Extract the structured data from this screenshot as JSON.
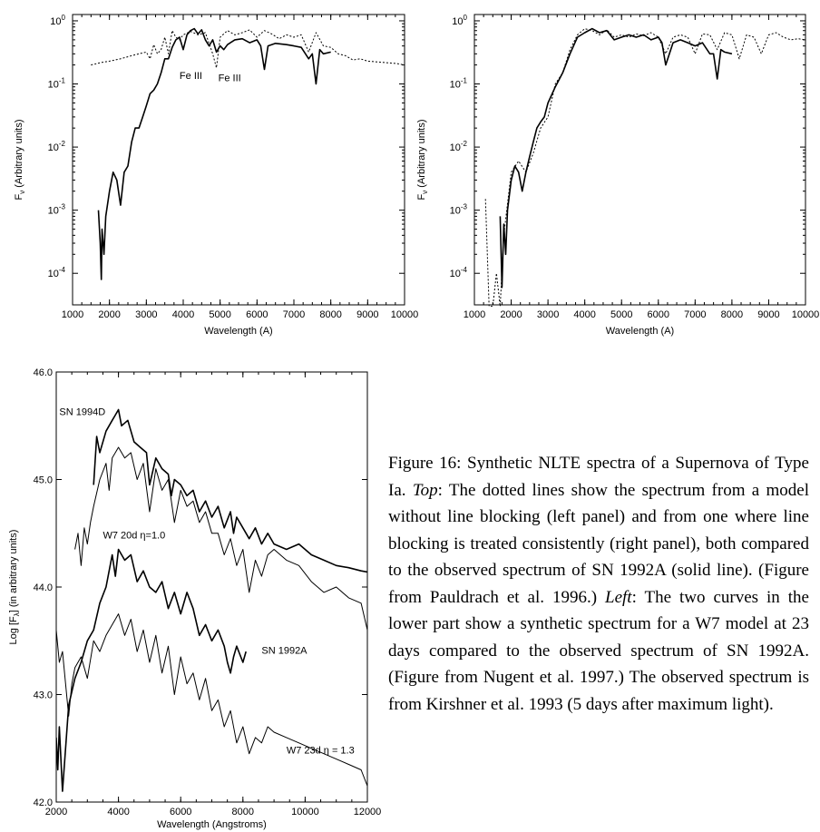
{
  "figure": {
    "caption_label": "Figure 16:",
    "caption_intro": " Synthetic NLTE spectra of a Supernova of Type Ia. ",
    "caption_top_word": "Top",
    "caption_top_text": ": The dotted lines show the spectrum from a model without line blocking (left panel) and from one where line blocking is treated consistently (right panel), both compared to the observed spectrum of SN 1992A (solid line). (Figure from Pauldrach et al. 1996.) ",
    "caption_left_word": "Left",
    "caption_left_text": ": The two curves in the lower part show a synthetic spectrum for a W7 model at 23 days compared to the observed spectrum of SN 1992A. (Figure from Nugent et al. 1997.) The observed spectrum is from Kirshner et al. 1993 (5 days after maximum light)."
  },
  "chart_data": [
    {
      "type": "line",
      "xlabel": "Wavelength (A)",
      "ylabel": "F_ν (Arbitrary units)",
      "xlim": [
        1000,
        10000
      ],
      "ylim_log10": [
        -4.5,
        0.1
      ],
      "yscale": "log",
      "grid": false,
      "xticks": [
        "1000",
        "2000",
        "3000",
        "4000",
        "5000",
        "6000",
        "7000",
        "8000",
        "9000",
        "10000"
      ],
      "yticks": [
        {
          "base": "10",
          "exp": "0",
          "log": 0
        },
        {
          "base": "10",
          "exp": "-1",
          "log": -1
        },
        {
          "base": "10",
          "exp": "-2",
          "log": -2
        },
        {
          "base": "10",
          "exp": "-3",
          "log": -3
        },
        {
          "base": "10",
          "exp": "-4",
          "log": -4
        }
      ],
      "annotations": [
        {
          "text": "Fe III",
          "x": 3900,
          "y": 0.12
        },
        {
          "text": "Fe III",
          "x": 4950,
          "y": 0.11
        }
      ],
      "series": [
        {
          "style": "solid",
          "x": [
            1700,
            1750,
            1780,
            1800,
            1850,
            1900,
            2000,
            2100,
            2200,
            2300,
            2400,
            2500,
            2600,
            2700,
            2800,
            2900,
            3000,
            3100,
            3200,
            3300,
            3400,
            3500,
            3600,
            3700,
            3800,
            3900,
            4000,
            4100,
            4200,
            4300,
            4400,
            4500,
            4600,
            4700,
            4800,
            4900,
            5000,
            5100,
            5200,
            5400,
            5600,
            5800,
            6000,
            6100,
            6200,
            6300,
            6500,
            6800,
            7000,
            7200,
            7400,
            7500,
            7600,
            7700,
            7800,
            8000
          ],
          "y": [
            0.001,
            0.0003,
            8e-05,
            0.0005,
            0.0002,
            0.0008,
            0.002,
            0.004,
            0.003,
            0.0012,
            0.004,
            0.005,
            0.012,
            0.02,
            0.02,
            0.03,
            0.045,
            0.07,
            0.08,
            0.1,
            0.15,
            0.25,
            0.25,
            0.38,
            0.5,
            0.55,
            0.35,
            0.6,
            0.7,
            0.75,
            0.62,
            0.72,
            0.5,
            0.4,
            0.5,
            0.32,
            0.4,
            0.35,
            0.42,
            0.5,
            0.52,
            0.45,
            0.5,
            0.4,
            0.17,
            0.4,
            0.44,
            0.42,
            0.4,
            0.38,
            0.25,
            0.3,
            0.1,
            0.35,
            0.3,
            0.32
          ]
        },
        {
          "style": "dotted",
          "x": [
            1500,
            1800,
            2000,
            2300,
            2600,
            2800,
            3000,
            3100,
            3200,
            3300,
            3400,
            3500,
            3600,
            3700,
            3800,
            3900,
            4000,
            4200,
            4400,
            4600,
            4800,
            4900,
            5000,
            5200,
            5400,
            5600,
            5800,
            6000,
            6200,
            6400,
            6600,
            6800,
            7000,
            7200,
            7400,
            7600,
            7800,
            8000,
            8200,
            8400,
            8600,
            8800,
            9000,
            9400,
            9800,
            10000
          ],
          "y": [
            0.2,
            0.22,
            0.23,
            0.25,
            0.28,
            0.3,
            0.32,
            0.25,
            0.42,
            0.3,
            0.35,
            0.55,
            0.3,
            0.7,
            0.55,
            0.5,
            0.6,
            0.68,
            0.6,
            0.65,
            0.3,
            0.18,
            0.55,
            0.7,
            0.6,
            0.65,
            0.72,
            0.55,
            0.7,
            0.62,
            0.52,
            0.6,
            0.55,
            0.6,
            0.32,
            0.65,
            0.4,
            0.38,
            0.3,
            0.28,
            0.24,
            0.25,
            0.23,
            0.22,
            0.21,
            0.2
          ]
        }
      ]
    },
    {
      "type": "line",
      "xlabel": "Wavelength (A)",
      "ylabel": "F_ν (Arbitrary units)",
      "xlim": [
        1000,
        10000
      ],
      "ylim_log10": [
        -4.5,
        0.1
      ],
      "yscale": "log",
      "grid": false,
      "xticks": [
        "1000",
        "2000",
        "3000",
        "4000",
        "5000",
        "6000",
        "7000",
        "8000",
        "9000",
        "10000"
      ],
      "yticks": [
        {
          "base": "10",
          "exp": "0",
          "log": 0
        },
        {
          "base": "10",
          "exp": "-1",
          "log": -1
        },
        {
          "base": "10",
          "exp": "-2",
          "log": -2
        },
        {
          "base": "10",
          "exp": "-3",
          "log": -3
        },
        {
          "base": "10",
          "exp": "-4",
          "log": -4
        }
      ],
      "series": [
        {
          "style": "solid",
          "x": [
            1700,
            1750,
            1800,
            1850,
            1900,
            2000,
            2100,
            2200,
            2300,
            2400,
            2500,
            2600,
            2700,
            2800,
            2900,
            3000,
            3200,
            3400,
            3600,
            3800,
            4000,
            4200,
            4400,
            4600,
            4800,
            5000,
            5200,
            5400,
            5600,
            5800,
            6000,
            6100,
            6200,
            6400,
            6600,
            6800,
            7000,
            7200,
            7400,
            7500,
            7600,
            7700,
            7800,
            8000
          ],
          "y": [
            0.0008,
            6e-05,
            0.0006,
            0.0002,
            0.001,
            0.003,
            0.005,
            0.004,
            0.002,
            0.004,
            0.007,
            0.012,
            0.02,
            0.025,
            0.03,
            0.05,
            0.09,
            0.15,
            0.3,
            0.55,
            0.65,
            0.75,
            0.65,
            0.7,
            0.5,
            0.55,
            0.6,
            0.55,
            0.6,
            0.5,
            0.55,
            0.45,
            0.2,
            0.45,
            0.5,
            0.45,
            0.4,
            0.45,
            0.3,
            0.3,
            0.12,
            0.35,
            0.32,
            0.3
          ]
        },
        {
          "style": "dotted",
          "x": [
            1300,
            1400,
            1500,
            1600,
            1700,
            1800,
            2000,
            2200,
            2400,
            2600,
            2800,
            3000,
            3200,
            3400,
            3600,
            3800,
            4000,
            4200,
            4400,
            4600,
            4800,
            5000,
            5200,
            5400,
            5600,
            5800,
            6000,
            6200,
            6400,
            6600,
            6800,
            7000,
            7200,
            7400,
            7600,
            7800,
            8000,
            8200,
            8400,
            8600,
            8800,
            9000,
            9200,
            9400,
            9600,
            9800,
            10000
          ],
          "y": [
            0.0015,
            3e-05,
            3e-05,
            0.0001,
            3e-05,
            0.0004,
            0.004,
            0.006,
            0.004,
            0.008,
            0.02,
            0.03,
            0.1,
            0.15,
            0.35,
            0.6,
            0.75,
            0.7,
            0.6,
            0.72,
            0.55,
            0.6,
            0.55,
            0.62,
            0.58,
            0.65,
            0.55,
            0.3,
            0.55,
            0.6,
            0.55,
            0.3,
            0.62,
            0.6,
            0.35,
            0.65,
            0.6,
            0.25,
            0.6,
            0.55,
            0.3,
            0.6,
            0.65,
            0.55,
            0.5,
            0.52,
            0.5
          ]
        }
      ]
    },
    {
      "type": "line",
      "xlabel": "Wavelength (Angstroms)",
      "ylabel": "Log [F_λ] (in arbitrary units)",
      "xlim": [
        2000,
        12000
      ],
      "ylim": [
        42.0,
        46.0
      ],
      "grid": false,
      "xticks": [
        "2000",
        "4000",
        "6000",
        "8000",
        "10000",
        "12000"
      ],
      "yticks": [
        "42.0",
        "43.0",
        "44.0",
        "45.0",
        "46.0"
      ],
      "labels": [
        {
          "text": "SN 1994D",
          "x": 2100,
          "y": 45.6
        },
        {
          "text": "W7 20d η=1.0",
          "x": 3500,
          "y": 44.45
        },
        {
          "text": "SN 1992A",
          "x": 8600,
          "y": 43.38
        },
        {
          "text": "W7 23d η = 1.3",
          "x": 9400,
          "y": 42.45
        }
      ],
      "series": [
        {
          "name": "SN 1994D",
          "style": "thick",
          "x": [
            3200,
            3300,
            3400,
            3600,
            3800,
            3900,
            4000,
            4100,
            4300,
            4500,
            4700,
            4900,
            5000,
            5200,
            5400,
            5600,
            5700,
            5800,
            6000,
            6200,
            6400,
            6600,
            6800,
            7000,
            7200,
            7400,
            7600,
            7700,
            7800,
            8000,
            8200,
            8400,
            8600,
            8800,
            9000,
            9400,
            9800,
            10200,
            10600,
            11000,
            11400,
            11800,
            12000
          ],
          "y": [
            44.95,
            45.4,
            45.25,
            45.45,
            45.55,
            45.6,
            45.65,
            45.5,
            45.55,
            45.35,
            45.3,
            45.25,
            44.95,
            45.2,
            45.1,
            45.05,
            44.85,
            45.0,
            44.95,
            44.85,
            44.9,
            44.7,
            44.8,
            44.65,
            44.75,
            44.55,
            44.7,
            44.5,
            44.65,
            44.55,
            44.45,
            44.55,
            44.4,
            44.5,
            44.4,
            44.35,
            44.4,
            44.3,
            44.25,
            44.2,
            44.18,
            44.15,
            44.14
          ]
        },
        {
          "name": "W7 20d",
          "style": "thin",
          "x": [
            2600,
            2700,
            2800,
            2900,
            3000,
            3100,
            3200,
            3400,
            3600,
            3700,
            3800,
            4000,
            4200,
            4400,
            4600,
            4800,
            5000,
            5200,
            5400,
            5600,
            5800,
            6000,
            6200,
            6400,
            6600,
            6800,
            7000,
            7200,
            7400,
            7600,
            7800,
            8000,
            8200,
            8400,
            8600,
            8800,
            9000,
            9200,
            9400,
            9800,
            10200,
            10600,
            11000,
            11400,
            11800,
            12000
          ],
          "y": [
            44.35,
            44.5,
            44.2,
            44.55,
            44.4,
            44.6,
            44.75,
            45.0,
            45.15,
            44.9,
            45.2,
            45.3,
            45.2,
            45.25,
            45.0,
            45.15,
            44.7,
            45.1,
            44.9,
            45.0,
            44.6,
            44.9,
            44.75,
            44.8,
            44.6,
            44.7,
            44.5,
            44.5,
            44.3,
            44.45,
            44.2,
            44.35,
            43.95,
            44.25,
            44.1,
            44.3,
            44.35,
            44.3,
            44.25,
            44.2,
            44.05,
            43.95,
            44.0,
            43.9,
            43.85,
            43.6
          ]
        },
        {
          "name": "SN 1992A",
          "style": "thick",
          "x": [
            2000,
            2050,
            2100,
            2200,
            2300,
            2400,
            2600,
            2800,
            3000,
            3200,
            3400,
            3600,
            3800,
            3900,
            4000,
            4200,
            4400,
            4600,
            4800,
            5000,
            5200,
            5400,
            5600,
            5800,
            6000,
            6200,
            6400,
            6600,
            6800,
            7000,
            7200,
            7400,
            7500,
            7600,
            7700,
            7800,
            8000,
            8100
          ],
          "y": [
            42.6,
            42.3,
            42.7,
            42.1,
            42.5,
            42.9,
            43.15,
            43.3,
            43.5,
            43.6,
            43.85,
            44.0,
            44.3,
            44.1,
            44.35,
            44.25,
            44.3,
            44.05,
            44.15,
            44.0,
            43.95,
            44.05,
            43.8,
            43.95,
            43.75,
            43.95,
            43.8,
            43.55,
            43.65,
            43.5,
            43.6,
            43.45,
            43.3,
            43.2,
            43.35,
            43.45,
            43.3,
            43.4
          ]
        },
        {
          "name": "W7 23d",
          "style": "thin",
          "x": [
            2000,
            2100,
            2200,
            2300,
            2400,
            2500,
            2600,
            2800,
            3000,
            3200,
            3400,
            3600,
            3800,
            4000,
            4200,
            4400,
            4600,
            4800,
            5000,
            5200,
            5400,
            5600,
            5800,
            6000,
            6200,
            6400,
            6600,
            6800,
            7000,
            7200,
            7400,
            7600,
            7800,
            8000,
            8200,
            8400,
            8600,
            8800,
            9000,
            9400,
            9800,
            10200,
            10600,
            11000,
            11400,
            11800,
            12000
          ],
          "y": [
            43.6,
            43.3,
            43.4,
            43.1,
            42.8,
            43.1,
            43.25,
            43.35,
            43.15,
            43.5,
            43.4,
            43.55,
            43.65,
            43.75,
            43.55,
            43.7,
            43.4,
            43.6,
            43.3,
            43.55,
            43.2,
            43.45,
            43.0,
            43.35,
            43.1,
            43.2,
            42.95,
            43.15,
            42.85,
            42.95,
            42.7,
            42.85,
            42.55,
            42.7,
            42.45,
            42.6,
            42.55,
            42.7,
            42.65,
            42.6,
            42.55,
            42.5,
            42.45,
            42.4,
            42.35,
            42.3,
            42.15
          ]
        }
      ]
    }
  ]
}
